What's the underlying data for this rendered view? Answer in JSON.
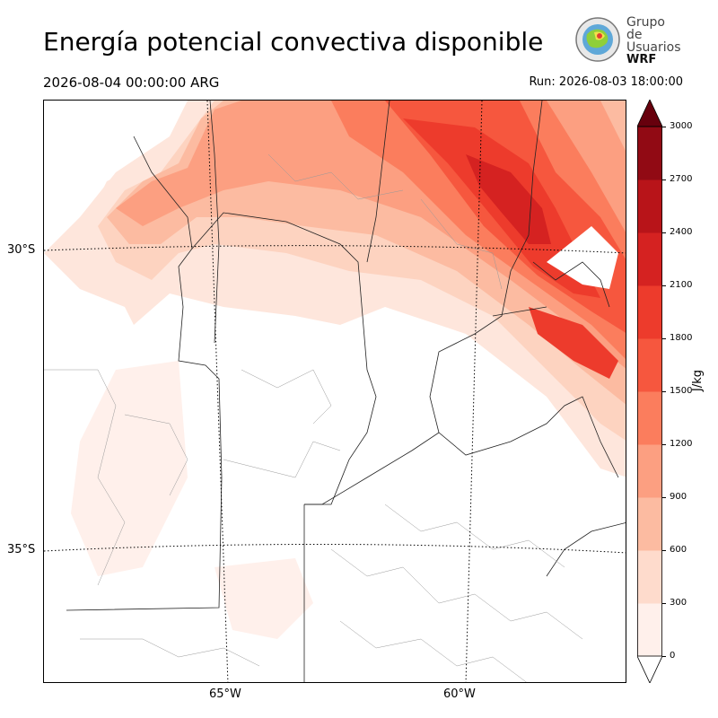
{
  "title": "Energía potencial convectiva disponible",
  "valid_time": "2026-08-04 00:00:00 ARG",
  "run_time": "Run: 2026-08-03 18:00:00",
  "logo": {
    "line1": "Grupo de",
    "line2": "Usuarios",
    "line3": "WRF"
  },
  "map": {
    "lat_labels": [
      "30°S",
      "35°S"
    ],
    "lon_labels": [
      "65°W",
      "60°W"
    ]
  },
  "colorbar": {
    "unit": "J/kg",
    "ticks": [
      "0",
      "300",
      "600",
      "900",
      "1200",
      "1500",
      "1800",
      "2100",
      "2400",
      "2700",
      "3000"
    ],
    "colors": [
      "#fff0eb",
      "#fedbcc",
      "#fcbba1",
      "#fc9f81",
      "#fb7d5d",
      "#f6573e",
      "#ed3b2c",
      "#d52221",
      "#b81419",
      "#910a14",
      "#67000d"
    ]
  }
}
